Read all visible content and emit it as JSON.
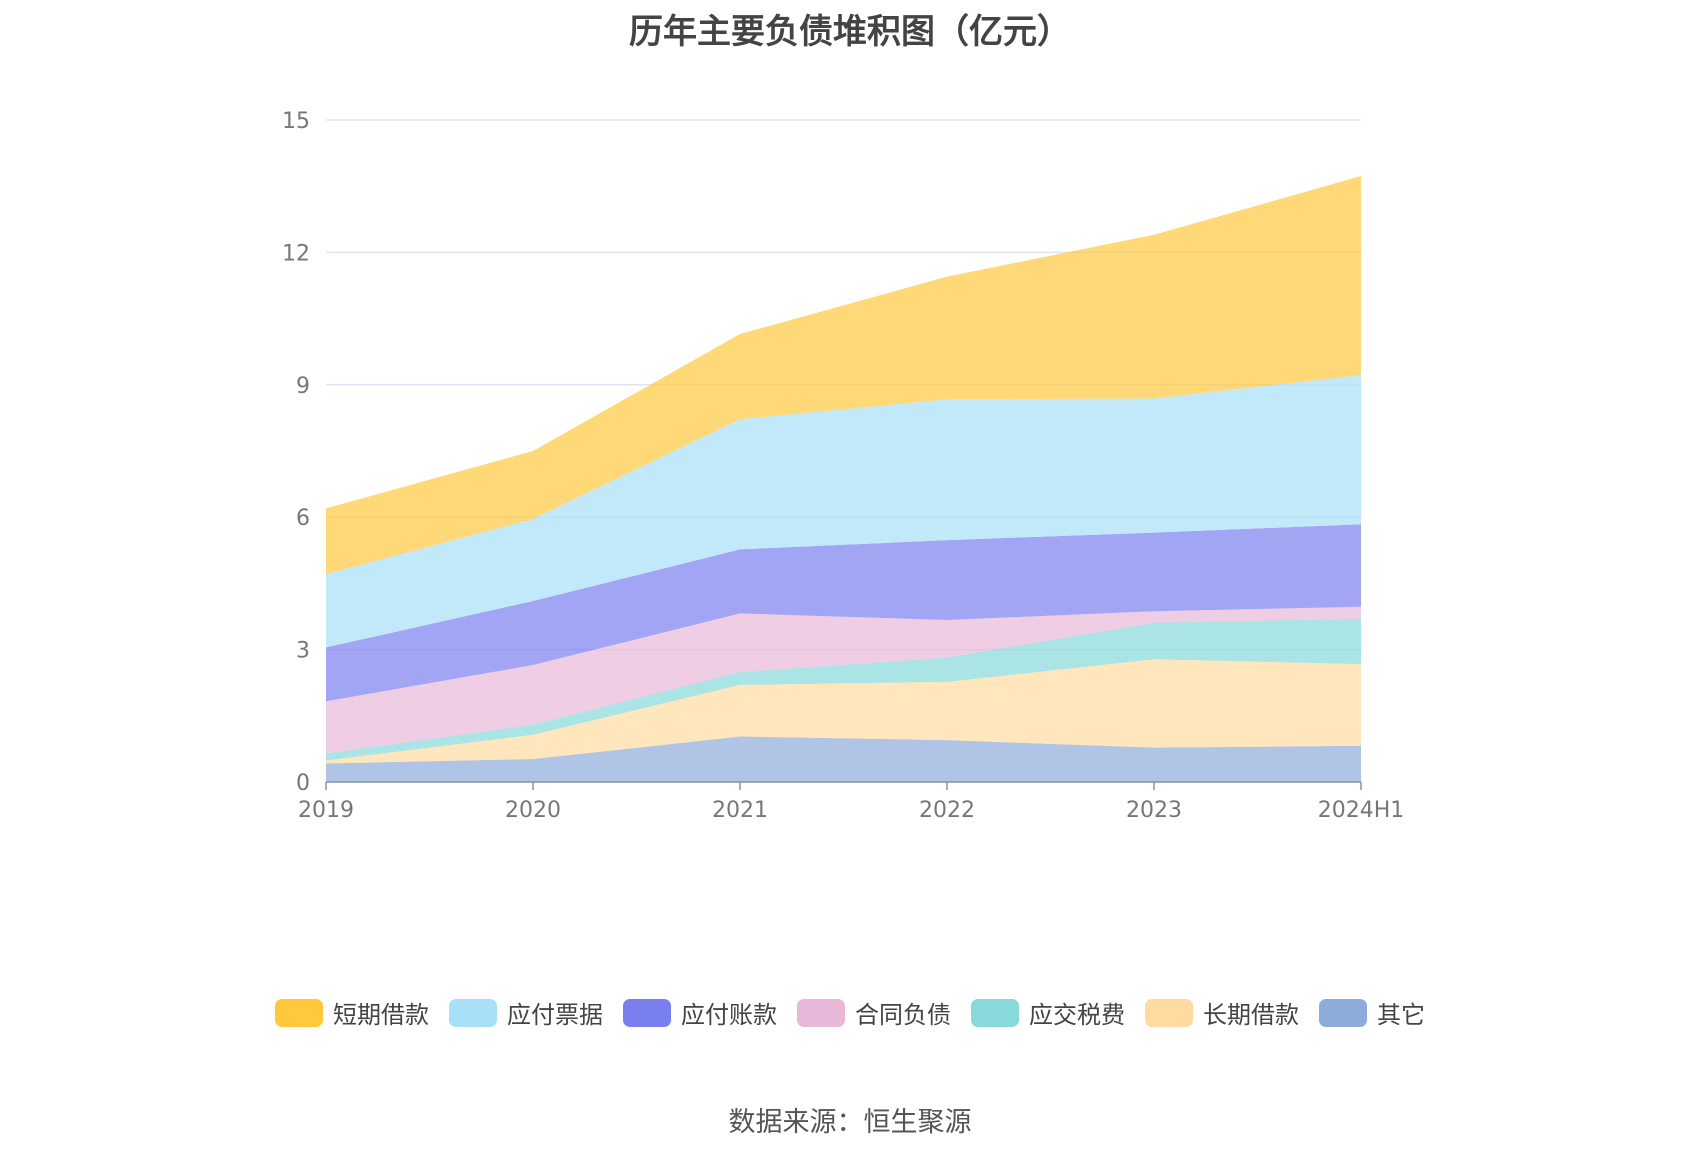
{
  "chart_data": {
    "type": "area",
    "stacked": true,
    "title": "历年主要负债堆积图（亿元）",
    "source": "数据来源：恒生聚源",
    "categories": [
      "2019",
      "2020",
      "2021",
      "2022",
      "2023",
      "2024H1"
    ],
    "ylim": [
      0,
      15
    ],
    "yticks": [
      "0",
      "3",
      "6",
      "9",
      "12",
      "15"
    ],
    "grid": true,
    "legend_position": "bottom",
    "series": [
      {
        "name": "其它",
        "color": "#8eacda",
        "values": [
          0.42,
          0.52,
          1.03,
          0.95,
          0.78,
          0.82
        ]
      },
      {
        "name": "长期借款",
        "color": "#ffdba0",
        "values": [
          0.07,
          0.55,
          1.17,
          1.32,
          2.0,
          1.85
        ]
      },
      {
        "name": "应交税费",
        "color": "#88d9d9",
        "values": [
          0.16,
          0.23,
          0.29,
          0.55,
          0.83,
          1.03
        ]
      },
      {
        "name": "合同负债",
        "color": "#e8b8d8",
        "values": [
          1.18,
          1.35,
          1.33,
          0.85,
          0.26,
          0.27
        ]
      },
      {
        "name": "应付账款",
        "color": "#7a7ff0",
        "values": [
          1.22,
          1.45,
          1.45,
          1.81,
          1.78,
          1.87
        ]
      },
      {
        "name": "应付票据",
        "color": "#a8e0f8",
        "values": [
          1.66,
          1.86,
          2.95,
          3.19,
          3.04,
          3.38
        ]
      },
      {
        "name": "短期借款",
        "color": "#ffc83d",
        "values": [
          1.49,
          1.54,
          1.93,
          2.78,
          3.71,
          4.51
        ]
      }
    ],
    "legend_order": [
      "短期借款",
      "应付票据",
      "应付账款",
      "合同负债",
      "应交税费",
      "长期借款",
      "其它"
    ]
  }
}
